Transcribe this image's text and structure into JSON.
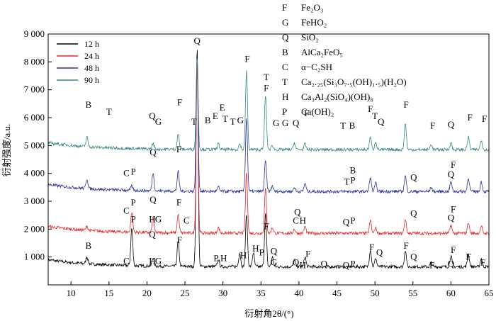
{
  "chart_data": {
    "type": "line",
    "xlabel": "衍射角2θ/(°)",
    "ylabel": "衍射强度/a.u.",
    "xlim": [
      7,
      65
    ],
    "ylim": [
      0,
      9000
    ],
    "x_ticks": [
      "10",
      "15",
      "20",
      "25",
      "30",
      "35",
      "40",
      "45",
      "50",
      "55",
      "60",
      "65"
    ],
    "y_ticks": [
      "1 000",
      "2 000",
      "3 000",
      "4 000",
      "5 000",
      "6 000",
      "7 000",
      "8 000",
      "9 000"
    ],
    "grid": false,
    "legend_position": "top-left",
    "series": [
      {
        "name": "12 h",
        "color": "#000000",
        "baseline": 650,
        "peaks": [
          [
            12.1,
            250
          ],
          [
            18.0,
            1350
          ],
          [
            20.8,
            300
          ],
          [
            24.1,
            900
          ],
          [
            26.6,
            7900
          ],
          [
            29.4,
            250
          ],
          [
            32.2,
            500
          ],
          [
            33.1,
            1900
          ],
          [
            34.0,
            500
          ],
          [
            35.6,
            1900
          ],
          [
            36.5,
            350
          ],
          [
            39.4,
            250
          ],
          [
            40.8,
            350
          ],
          [
            49.4,
            600
          ],
          [
            50.1,
            300
          ],
          [
            54.0,
            600
          ],
          [
            57.4,
            150
          ],
          [
            60.0,
            400
          ],
          [
            62.3,
            450
          ],
          [
            64.0,
            300
          ]
        ]
      },
      {
        "name": "24 h",
        "color": "#e8262a",
        "baseline": 1850,
        "peaks": [
          [
            12.1,
            150
          ],
          [
            18.0,
            700
          ],
          [
            20.8,
            550
          ],
          [
            24.1,
            650
          ],
          [
            26.6,
            6000
          ],
          [
            29.4,
            200
          ],
          [
            33.1,
            2200
          ],
          [
            35.6,
            1600
          ],
          [
            36.5,
            200
          ],
          [
            39.4,
            150
          ],
          [
            40.8,
            250
          ],
          [
            49.4,
            450
          ],
          [
            50.1,
            200
          ],
          [
            54.0,
            500
          ],
          [
            60.0,
            300
          ],
          [
            62.3,
            400
          ],
          [
            64.0,
            250
          ]
        ]
      },
      {
        "name": "48 h",
        "color": "#2e3192",
        "baseline": 3350,
        "peaks": [
          [
            12.1,
            350
          ],
          [
            18.0,
            150
          ],
          [
            20.8,
            650
          ],
          [
            24.1,
            700
          ],
          [
            26.6,
            4850
          ],
          [
            29.4,
            150
          ],
          [
            33.1,
            2650
          ],
          [
            35.6,
            1100
          ],
          [
            36.5,
            200
          ],
          [
            39.4,
            150
          ],
          [
            40.8,
            300
          ],
          [
            49.4,
            500
          ],
          [
            50.1,
            300
          ],
          [
            54.0,
            550
          ],
          [
            57.4,
            150
          ],
          [
            60.0,
            350
          ],
          [
            62.3,
            500
          ],
          [
            64.0,
            350
          ]
        ]
      },
      {
        "name": "90 h",
        "color": "#3b8686",
        "baseline": 4850,
        "peaks": [
          [
            12.1,
            350
          ],
          [
            20.8,
            200
          ],
          [
            24.1,
            550
          ],
          [
            26.6,
            3300
          ],
          [
            29.4,
            200
          ],
          [
            32.2,
            200
          ],
          [
            33.1,
            2850
          ],
          [
            35.6,
            1950
          ],
          [
            36.5,
            150
          ],
          [
            39.4,
            250
          ],
          [
            40.8,
            200
          ],
          [
            49.4,
            450
          ],
          [
            50.1,
            300
          ],
          [
            54.0,
            950
          ],
          [
            57.4,
            200
          ],
          [
            60.0,
            250
          ],
          [
            62.3,
            450
          ],
          [
            64.0,
            350
          ]
        ]
      }
    ],
    "key": [
      {
        "letter": "F",
        "formula": "Fe₂O₃"
      },
      {
        "letter": "G",
        "formula": "FeHO₂"
      },
      {
        "letter": "Q",
        "formula": "SiO₂"
      },
      {
        "letter": "B",
        "formula": "AlCa₂FeO₅"
      },
      {
        "letter": "C",
        "formula": "α−C₂SH"
      },
      {
        "letter": "T",
        "formula": "Ca₂.₂₅(Si₃O₇.₅(OH)₁.₅)(H₂O)"
      },
      {
        "letter": "H",
        "formula": "Ca₃Al₂(SiO₄)(OH)₈"
      },
      {
        "letter": "P",
        "formula": "Ca(OH)₂"
      }
    ],
    "annotations": [
      {
        "t": "B",
        "x": 12.3,
        "y": 1300
      },
      {
        "t": "C",
        "x": 17.3,
        "y": 750
      },
      {
        "t": "P",
        "x": 18.2,
        "y": 2250
      },
      {
        "t": "Q",
        "x": 20.7,
        "y": 1700
      },
      {
        "t": "H",
        "x": 20.7,
        "y": 750
      },
      {
        "t": "G",
        "x": 21.5,
        "y": 750
      },
      {
        "t": "F",
        "x": 24.3,
        "y": 1500
      },
      {
        "t": "P",
        "x": 29.1,
        "y": 850
      },
      {
        "t": "H",
        "x": 30.1,
        "y": 850
      },
      {
        "t": "H",
        "x": 32.7,
        "y": 950
      },
      {
        "t": "H",
        "x": 34.3,
        "y": 1200
      },
      {
        "t": "P",
        "x": 35.1,
        "y": 1050
      },
      {
        "t": "F",
        "x": 35.7,
        "y": 2000
      },
      {
        "t": "Q",
        "x": 36.7,
        "y": 1100
      },
      {
        "t": "G",
        "x": 36.7,
        "y": 700
      },
      {
        "t": "Q",
        "x": 39.6,
        "y": 700
      },
      {
        "t": "H",
        "x": 40.5,
        "y": 600
      },
      {
        "t": "F",
        "x": 41.2,
        "y": 1000
      },
      {
        "t": "Q",
        "x": 43.3,
        "y": 650
      },
      {
        "t": "Q",
        "x": 46.2,
        "y": 600
      },
      {
        "t": "P",
        "x": 47.1,
        "y": 650
      },
      {
        "t": "F",
        "x": 49.6,
        "y": 1250
      },
      {
        "t": "Q",
        "x": 50.6,
        "y": 1050
      },
      {
        "t": "F",
        "x": 54.1,
        "y": 1300
      },
      {
        "t": "Q",
        "x": 55.1,
        "y": 900
      },
      {
        "t": "F",
        "x": 57.5,
        "y": 600
      },
      {
        "t": "Q",
        "x": 60.0,
        "y": 650
      },
      {
        "t": "F",
        "x": 60.3,
        "y": 1150
      },
      {
        "t": "F",
        "x": 62.3,
        "y": 900
      },
      {
        "t": "F",
        "x": 64.2,
        "y": 700
      },
      {
        "t": "C",
        "x": 17.3,
        "y": 2550
      },
      {
        "t": "P",
        "x": 18.2,
        "y": 2850
      },
      {
        "t": "Q",
        "x": 20.8,
        "y": 2950
      },
      {
        "t": "H",
        "x": 20.7,
        "y": 2250
      },
      {
        "t": "G",
        "x": 21.5,
        "y": 2250
      },
      {
        "t": "F",
        "x": 24.2,
        "y": 2850
      },
      {
        "t": "C",
        "x": 25.2,
        "y": 2200
      },
      {
        "t": "Q",
        "x": 39.8,
        "y": 2500
      },
      {
        "t": "C",
        "x": 39.6,
        "y": 2200
      },
      {
        "t": "H",
        "x": 40.5,
        "y": 2200
      },
      {
        "t": "Q",
        "x": 46.2,
        "y": 2150
      },
      {
        "t": "P",
        "x": 47.1,
        "y": 2200
      },
      {
        "t": "Q",
        "x": 55.1,
        "y": 2450
      },
      {
        "t": "F",
        "x": 60.3,
        "y": 2600
      },
      {
        "t": "Q",
        "x": 60.0,
        "y": 2300
      },
      {
        "t": "C",
        "x": 17.3,
        "y": 3900
      },
      {
        "t": "P",
        "x": 18.2,
        "y": 3950
      },
      {
        "t": "Q",
        "x": 20.8,
        "y": 4650
      },
      {
        "t": "F",
        "x": 24.2,
        "y": 4750
      },
      {
        "t": "T",
        "x": 46.3,
        "y": 3600
      },
      {
        "t": "P",
        "x": 47.1,
        "y": 3650
      },
      {
        "t": "B",
        "x": 47.1,
        "y": 4000
      },
      {
        "t": "Q",
        "x": 55.1,
        "y": 3750
      },
      {
        "t": "F",
        "x": 60.3,
        "y": 4200
      },
      {
        "t": "Q",
        "x": 60.0,
        "y": 3850
      },
      {
        "t": "Q",
        "x": 26.6,
        "y": 8650
      },
      {
        "t": "F",
        "x": 33.2,
        "y": 8000
      },
      {
        "t": "T",
        "x": 35.7,
        "y": 7350
      },
      {
        "t": "F",
        "x": 35.7,
        "y": 6950
      },
      {
        "t": "B",
        "x": 12.3,
        "y": 6350
      },
      {
        "t": "T",
        "x": 15.0,
        "y": 6100
      },
      {
        "t": "Q",
        "x": 20.7,
        "y": 5950
      },
      {
        "t": "G",
        "x": 21.5,
        "y": 5750
      },
      {
        "t": "F",
        "x": 24.3,
        "y": 6450
      },
      {
        "t": "T",
        "x": 26.2,
        "y": 5750
      },
      {
        "t": "B",
        "x": 28.0,
        "y": 5800
      },
      {
        "t": "E",
        "x": 29.0,
        "y": 5950
      },
      {
        "t": "E",
        "x": 29.9,
        "y": 6250
      },
      {
        "t": "T",
        "x": 30.3,
        "y": 5850
      },
      {
        "t": "T",
        "x": 31.3,
        "y": 5750
      },
      {
        "t": "G",
        "x": 32.3,
        "y": 5800
      },
      {
        "t": "G",
        "x": 37.0,
        "y": 5700
      },
      {
        "t": "G",
        "x": 38.2,
        "y": 5700
      },
      {
        "t": "Q",
        "x": 39.6,
        "y": 5700
      },
      {
        "t": "F",
        "x": 41.0,
        "y": 6050
      },
      {
        "t": "T",
        "x": 45.8,
        "y": 5600
      },
      {
        "t": "B",
        "x": 47.0,
        "y": 5600
      },
      {
        "t": "F",
        "x": 49.4,
        "y": 6200
      },
      {
        "t": "T",
        "x": 50.0,
        "y": 5950
      },
      {
        "t": "Q",
        "x": 50.8,
        "y": 5750
      },
      {
        "t": "F",
        "x": 54.1,
        "y": 6350
      },
      {
        "t": "F",
        "x": 57.6,
        "y": 5600
      },
      {
        "t": "Q",
        "x": 60.0,
        "y": 5650
      },
      {
        "t": "F",
        "x": 62.5,
        "y": 5900
      },
      {
        "t": "F",
        "x": 64.4,
        "y": 5850
      }
    ]
  }
}
